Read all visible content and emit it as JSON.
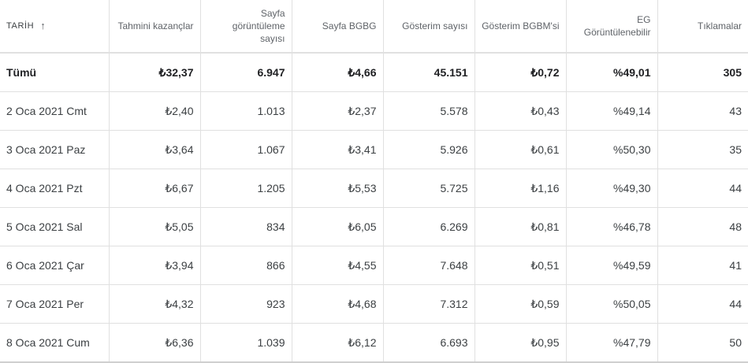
{
  "headers": [
    "TARİH",
    "Tahmini kazançlar",
    "Sayfa görüntüleme sayısı",
    "Sayfa BGBG",
    "Gösterim sayısı",
    "Gösterim BGBM'si",
    "EG Görüntülenebilir",
    "Tıklamalar"
  ],
  "sort_icon": "arrow-up-icon",
  "total": [
    "Tümü",
    "₺32,37",
    "6.947",
    "₺4,66",
    "45.151",
    "₺0,72",
    "%49,01",
    "305"
  ],
  "rows": [
    [
      "2 Oca 2021 Cmt",
      "₺2,40",
      "1.013",
      "₺2,37",
      "5.578",
      "₺0,43",
      "%49,14",
      "43"
    ],
    [
      "3 Oca 2021 Paz",
      "₺3,64",
      "1.067",
      "₺3,41",
      "5.926",
      "₺0,61",
      "%50,30",
      "35"
    ],
    [
      "4 Oca 2021 Pzt",
      "₺6,67",
      "1.205",
      "₺5,53",
      "5.725",
      "₺1,16",
      "%49,30",
      "44"
    ],
    [
      "5 Oca 2021 Sal",
      "₺5,05",
      "834",
      "₺6,05",
      "6.269",
      "₺0,81",
      "%46,78",
      "48"
    ],
    [
      "6 Oca 2021 Çar",
      "₺3,94",
      "866",
      "₺4,55",
      "7.648",
      "₺0,51",
      "%49,59",
      "41"
    ],
    [
      "7 Oca 2021 Per",
      "₺4,32",
      "923",
      "₺4,68",
      "7.312",
      "₺0,59",
      "%50,05",
      "44"
    ],
    [
      "8 Oca 2021 Cum",
      "₺6,36",
      "1.039",
      "₺6,12",
      "6.693",
      "₺0,95",
      "%47,79",
      "50"
    ]
  ]
}
